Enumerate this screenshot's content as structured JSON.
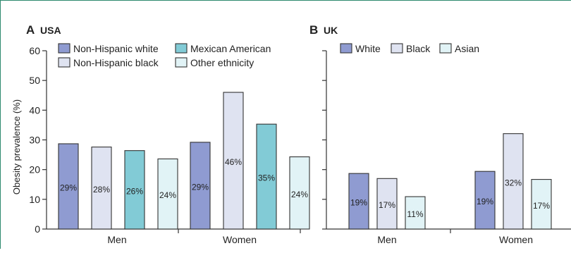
{
  "colors": {
    "non_hispanic_white": "#8f9bd1",
    "non_hispanic_black": "#dfe3f1",
    "mexican_american": "#82cbd6",
    "other_ethnicity": "#e1f3f6",
    "white": "#8f9bd1",
    "black": "#dfe3f1",
    "asian": "#e1f3f6",
    "frame": "#2e8a6e"
  },
  "chart_data": [
    {
      "type": "bar",
      "panel_letter": "A",
      "title": "USA",
      "ylabel": "Obesity prevalence (%)",
      "ylim": [
        0,
        60
      ],
      "yticks": [
        "0",
        "10",
        "20",
        "30",
        "40",
        "50",
        "60"
      ],
      "categories": [
        "Men",
        "Women"
      ],
      "legend_position": "top",
      "series": [
        {
          "name": "Non-Hispanic white",
          "values": [
            28.7,
            29.2
          ],
          "labels": [
            "29%",
            "29%"
          ]
        },
        {
          "name": "Non-Hispanic black",
          "values": [
            27.6,
            46.0
          ],
          "labels": [
            "28%",
            "46%"
          ]
        },
        {
          "name": "Mexican American",
          "values": [
            26.4,
            35.3
          ],
          "labels": [
            "26%",
            "35%"
          ]
        },
        {
          "name": "Other ethnicity",
          "values": [
            23.6,
            24.3
          ],
          "labels": [
            "24%",
            "24%"
          ]
        }
      ]
    },
    {
      "type": "bar",
      "panel_letter": "B",
      "title": "UK",
      "ylim": [
        0,
        60
      ],
      "categories": [
        "Men",
        "Women"
      ],
      "legend_position": "top",
      "series": [
        {
          "name": "White",
          "values": [
            18.7,
            19.4
          ],
          "labels": [
            "19%",
            "19%"
          ]
        },
        {
          "name": "Black",
          "values": [
            17.0,
            32.1
          ],
          "labels": [
            "17%",
            "32%"
          ]
        },
        {
          "name": "Asian",
          "values": [
            10.9,
            16.7
          ],
          "labels": [
            "11%",
            "17%"
          ]
        }
      ]
    }
  ]
}
